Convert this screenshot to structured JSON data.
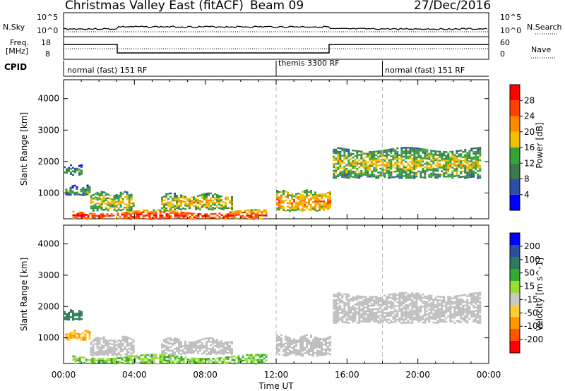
{
  "header": {
    "station": "Christmas Valley East (fitACF)",
    "beam": "Beam 09",
    "date": "27/Dec/2016"
  },
  "noise_panel": {
    "left_label": "N.Sky",
    "left_ticks": [
      "10^5",
      "10^0"
    ],
    "right_label": "N.Search",
    "right_ticks": [
      "10^5",
      "10^0"
    ]
  },
  "freq_panel": {
    "left_label_line1": "Freq.",
    "left_label_line2": "[MHz]",
    "left_ticks": [
      "18",
      "8"
    ],
    "right_label": "Nave",
    "right_ticks": [
      "60",
      "0"
    ]
  },
  "cpid_panel": {
    "label": "CPID",
    "segments": [
      {
        "name": "normal (fast) 151 RF",
        "start_hour": 0,
        "end_hour": 12
      },
      {
        "name": "themis 3300 RF",
        "start_hour": 12,
        "end_hour": 18
      },
      {
        "name": "normal (fast) 151 RF",
        "start_hour": 18,
        "end_hour": 24
      }
    ]
  },
  "colors": {
    "power": [
      "#0000ff",
      "#2e4fa8",
      "#3a7a4c",
      "#35a335",
      "#f0c000",
      "#ff8a00",
      "#ff4000",
      "#ff0000"
    ],
    "velocity": [
      "#ff0000",
      "#ff5500",
      "#ff9900",
      "#ffcc33",
      "#c8c8c8",
      "#99dd33",
      "#33aa33",
      "#2e7a5a",
      "#2a4d9e",
      "#0000ff"
    ],
    "ground_scatter": "#bebebe",
    "grid": "#bbbbbb"
  },
  "chart_data": [
    {
      "type": "heatmap",
      "name": "Power",
      "ylabel": "Slant Range [km]",
      "yticks": [
        1000,
        2000,
        3000,
        4000
      ],
      "ylim": [
        180,
        4600
      ],
      "xlim": [
        0,
        24
      ],
      "colorbar_label": "Power [dB]",
      "colorbar_ticks": [
        "4",
        "8",
        "12",
        "16",
        "20",
        "24",
        "28"
      ],
      "colorbar_range": [
        0,
        30
      ],
      "echo_regions": [
        {
          "start_hour": 0.0,
          "end_hour": 1.0,
          "range_low": 1600,
          "range_high": 1850,
          "power_db": 13
        },
        {
          "start_hour": 0.1,
          "end_hour": 1.5,
          "range_low": 950,
          "range_high": 1200,
          "power_db": 14
        },
        {
          "start_hour": 1.5,
          "end_hour": 4.0,
          "range_low": 450,
          "range_high": 1000,
          "power_db": 18
        },
        {
          "start_hour": 5.5,
          "end_hour": 9.5,
          "range_low": 500,
          "range_high": 950,
          "power_db": 19
        },
        {
          "start_hour": 12.0,
          "end_hour": 15.0,
          "range_low": 450,
          "range_high": 1050,
          "power_db": 22
        },
        {
          "start_hour": 15.2,
          "end_hour": 23.5,
          "range_low": 1500,
          "range_high": 2400,
          "power_db": 17
        },
        {
          "start_hour": 0.5,
          "end_hour": 11.5,
          "range_low": 200,
          "range_high": 420,
          "power_db": 27
        }
      ]
    },
    {
      "type": "heatmap",
      "name": "Velocity",
      "ylabel": "Slant Range [km]",
      "yticks": [
        1000,
        2000,
        3000,
        4000
      ],
      "ylim": [
        180,
        4600
      ],
      "xlim": [
        0,
        24
      ],
      "xlabel": "Time UT",
      "xticks": [
        "00:00",
        "04:00",
        "08:00",
        "12:00",
        "16:00",
        "20:00",
        "00:00"
      ],
      "colorbar_label": "Velocity [m s^-1]",
      "colorbar_ticks": [
        "-200",
        "-100",
        "-50",
        "-15",
        "15",
        "50",
        "100",
        "200"
      ],
      "colorbar_range": [
        -250,
        250
      ],
      "echo_regions": [
        {
          "start_hour": 0.0,
          "end_hour": 1.0,
          "range_low": 1600,
          "range_high": 1850,
          "velocity": 150
        },
        {
          "start_hour": 0.1,
          "end_hour": 1.5,
          "range_low": 950,
          "range_high": 1200,
          "velocity": -50
        },
        {
          "start_hour": 1.5,
          "end_hour": 4.0,
          "range_low": 450,
          "range_high": 1000,
          "velocity": 0
        },
        {
          "start_hour": 5.5,
          "end_hour": 9.5,
          "range_low": 500,
          "range_high": 950,
          "velocity": 0
        },
        {
          "start_hour": 12.0,
          "end_hour": 15.0,
          "range_low": 450,
          "range_high": 1050,
          "velocity": 0
        },
        {
          "start_hour": 15.2,
          "end_hour": 23.5,
          "range_low": 1500,
          "range_high": 2400,
          "velocity": 0
        },
        {
          "start_hour": 0.5,
          "end_hour": 11.5,
          "range_low": 200,
          "range_high": 420,
          "velocity": 40
        }
      ]
    }
  ]
}
